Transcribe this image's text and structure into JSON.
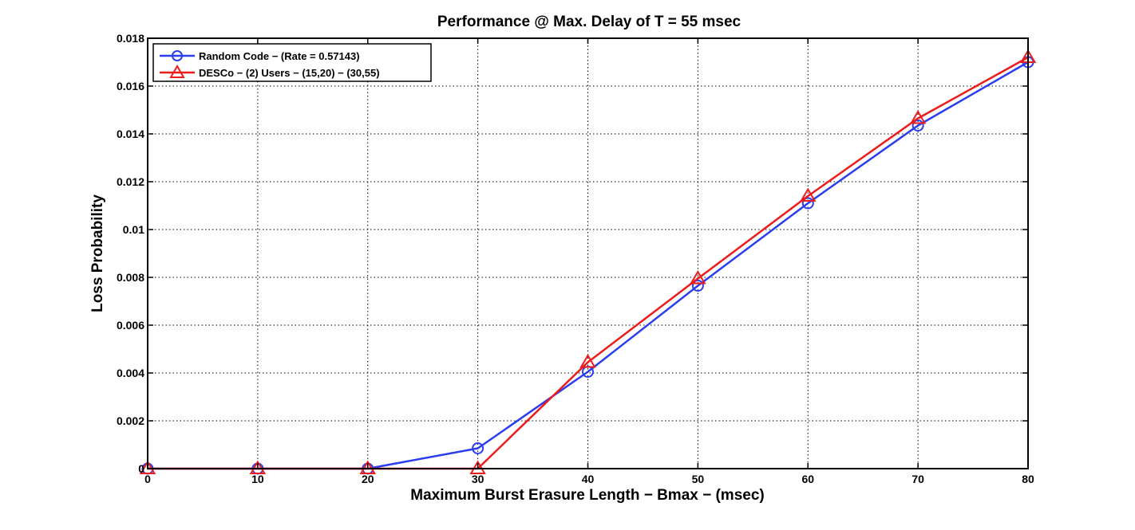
{
  "chart_data": {
    "type": "line",
    "title": "Performance @ Max. Delay of T = 55 msec",
    "xlabel": "Maximum Burst Erasure Length − Bmax − (msec)",
    "ylabel": "Loss Probability",
    "xlim": [
      0,
      80
    ],
    "ylim": [
      0,
      0.018
    ],
    "xticks": [
      0,
      10,
      20,
      30,
      40,
      50,
      60,
      70,
      80
    ],
    "xtick_labels": [
      "0",
      "10",
      "20",
      "30",
      "40",
      "50",
      "60",
      "70",
      "80"
    ],
    "yticks": [
      0,
      0.002,
      0.004,
      0.006,
      0.008,
      0.01,
      0.012,
      0.014,
      0.016,
      0.018
    ],
    "ytick_labels": [
      "0",
      "0.002",
      "0.004",
      "0.006",
      "0.008",
      "0.01",
      "0.012",
      "0.014",
      "0.016",
      "0.018"
    ],
    "grid": true,
    "legend_position": "top-left",
    "x": [
      0,
      10,
      20,
      30,
      40,
      50,
      60,
      70,
      80
    ],
    "series": [
      {
        "name": "Random Code − (Rate = 0.57143)",
        "color": "#2a3ef0",
        "marker": "circle",
        "values": [
          0,
          0,
          0,
          0.00085,
          0.00405,
          0.00765,
          0.0111,
          0.01435,
          0.017
        ]
      },
      {
        "name": "DESCo − (2) Users − (15,20) − (30,55)",
        "color": "#ee1b1b",
        "marker": "triangle",
        "values": [
          0,
          0,
          0,
          0,
          0.00445,
          0.00795,
          0.0114,
          0.01465,
          0.0172
        ]
      }
    ]
  }
}
